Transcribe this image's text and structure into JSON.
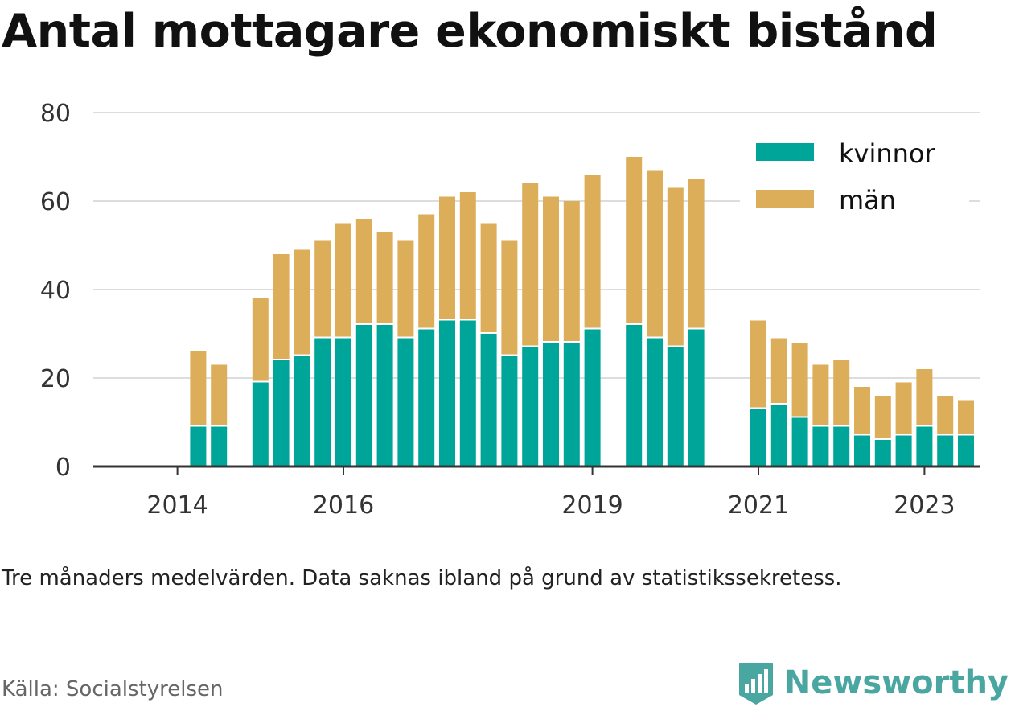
{
  "title": "Antal mottagare ekonomiskt bistånd",
  "note": "Tre månaders medelvärden. Data saknas ibland på grund av statistikssekretess.",
  "source": "Källa: Socialstyrelsen",
  "brand": "Newsworthy",
  "colors": {
    "kvinnor": "#00a59a",
    "man": "#dcae5a",
    "grid": "#dddddd",
    "axis": "#333333",
    "brand": "#4aa6a0"
  },
  "chart_data": {
    "type": "bar",
    "stacked": true,
    "x_tick_labels": [
      "2014",
      "2016",
      "2019",
      "2021",
      "2023"
    ],
    "y_ticks": [
      0,
      20,
      40,
      60,
      80
    ],
    "ylim": [
      0,
      80
    ],
    "grid": true,
    "legend_position": "top-right",
    "series": [
      {
        "name": "kvinnor",
        "color": "#00a59a",
        "values": [
          null,
          null,
          null,
          9,
          9,
          null,
          19,
          24,
          25,
          29,
          29,
          32,
          32,
          29,
          31,
          33,
          33,
          30,
          25,
          27,
          28,
          28,
          31,
          null,
          32,
          29,
          27,
          31,
          null,
          null,
          13,
          14,
          11,
          9,
          9,
          7,
          6,
          7,
          9,
          7,
          7
        ]
      },
      {
        "name": "män",
        "color": "#dcae5a",
        "values": [
          null,
          null,
          null,
          17,
          14,
          null,
          19,
          24,
          24,
          22,
          26,
          24,
          21,
          22,
          26,
          28,
          29,
          25,
          26,
          37,
          33,
          32,
          35,
          null,
          38,
          38,
          36,
          34,
          null,
          null,
          20,
          15,
          17,
          14,
          15,
          11,
          10,
          12,
          13,
          9,
          8
        ]
      }
    ],
    "tick_indices": [
      2,
      10,
      22,
      30,
      38
    ]
  }
}
